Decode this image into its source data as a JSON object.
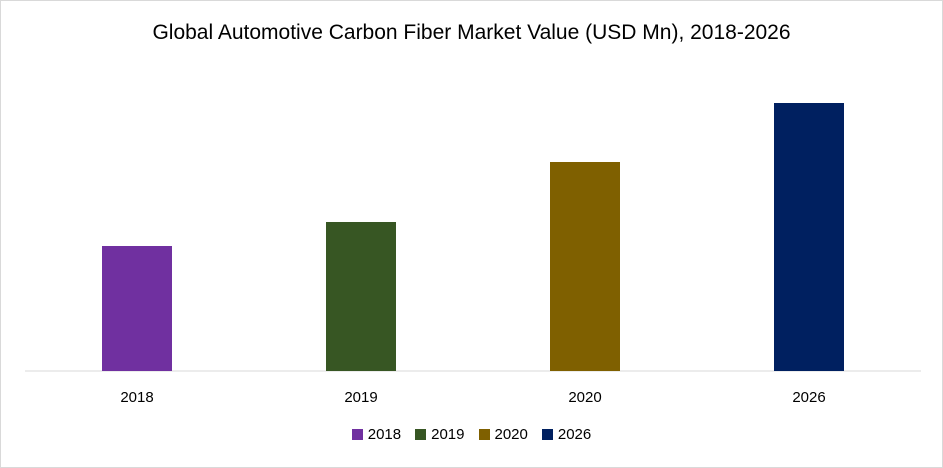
{
  "chart_data": {
    "type": "bar",
    "title": "Global Automotive Carbon Fiber Market Value (USD Mn), 2018-2026",
    "xlabel": "",
    "ylabel": "",
    "categories": [
      "2018",
      "2019",
      "2020",
      "2026"
    ],
    "values": [
      125,
      149,
      209,
      268
    ],
    "ylim": [
      0,
      300
    ],
    "grid": false,
    "legend": "bottom",
    "legend_entries": [
      "2018",
      "2019",
      "2020",
      "2026"
    ],
    "colors": [
      "#7030a0",
      "#375623",
      "#7f6000",
      "#002060"
    ]
  }
}
